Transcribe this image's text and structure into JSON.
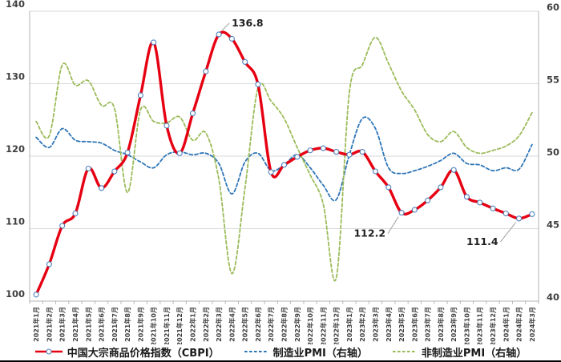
{
  "chart_data": {
    "type": "line",
    "title": "",
    "categories": [
      "2021年1月",
      "2021年2月",
      "2021年3月",
      "2021年4月",
      "2021年5月",
      "2021年6月",
      "2021年7月",
      "2021年8月",
      "2021年9月",
      "2021年10月",
      "2021年11月",
      "2021年12月",
      "2022年1月",
      "2022年2月",
      "2022年3月",
      "2022年4月",
      "2022年5月",
      "2022年6月",
      "2022年7月",
      "2022年8月",
      "2022年9月",
      "2022年10月",
      "2022年11月",
      "2022年12月",
      "2023年1月",
      "2023年2月",
      "2023年3月",
      "2023年4月",
      "2023年5月",
      "2023年6月",
      "2023年7月",
      "2023年8月",
      "2023年9月",
      "2023年10月",
      "2023年11月",
      "2023年12月",
      "2024年1月",
      "2024年2月",
      "2024年3月"
    ],
    "series": [
      {
        "name": "中国大宗商品价格指数（CBPI）",
        "axis": "left",
        "style": "solid",
        "marker": "circle",
        "color": "#e60012",
        "marker_stroke": "#4f81bd",
        "values": [
          100.9,
          105.1,
          110.4,
          112.1,
          118.3,
          115.6,
          117.9,
          120.5,
          128.4,
          135.7,
          124.2,
          120.4,
          125.9,
          131.7,
          136.8,
          136.2,
          133.0,
          129.9,
          117.8,
          118.8,
          119.9,
          120.8,
          121.1,
          120.6,
          120.2,
          120.6,
          117.9,
          115.7,
          112.2,
          112.6,
          113.9,
          115.7,
          118.1,
          114.4,
          113.6,
          112.8,
          112.1,
          111.4,
          112.0
        ]
      },
      {
        "name": "制造业PMI（右轴）",
        "axis": "right",
        "style": "dashed",
        "marker": "none",
        "color": "#2e75b6",
        "values": [
          51.3,
          50.6,
          51.9,
          51.1,
          51.0,
          50.9,
          50.4,
          50.1,
          49.6,
          49.2,
          50.1,
          50.3,
          50.1,
          50.2,
          49.5,
          47.4,
          49.6,
          50.2,
          49.0,
          49.4,
          50.1,
          49.2,
          48.0,
          47.0,
          50.1,
          52.6,
          51.9,
          49.2,
          48.8,
          49.0,
          49.3,
          49.7,
          50.2,
          49.5,
          49.4,
          49.0,
          49.2,
          49.1,
          50.8
        ]
      },
      {
        "name": "非制造业PMI（右轴）",
        "axis": "right",
        "style": "dashed",
        "marker": "none",
        "color": "#9bbb59",
        "values": [
          52.4,
          51.4,
          56.3,
          54.9,
          55.2,
          53.5,
          53.3,
          47.5,
          53.2,
          52.4,
          52.3,
          52.7,
          51.1,
          51.6,
          48.4,
          41.9,
          47.8,
          54.7,
          53.8,
          52.6,
          50.6,
          48.7,
          46.7,
          41.6,
          54.4,
          56.3,
          58.2,
          56.4,
          54.5,
          53.2,
          51.5,
          51.0,
          51.7,
          50.6,
          50.2,
          50.4,
          50.7,
          51.4,
          53.0
        ]
      }
    ],
    "left_axis": {
      "min": 100,
      "max": 140,
      "ticks": [
        100,
        110,
        120,
        130,
        140
      ]
    },
    "right_axis": {
      "min": 40,
      "max": 60,
      "ticks": [
        40,
        45,
        50,
        55,
        60
      ]
    },
    "annotations": [
      {
        "label": "136.8",
        "series": 0,
        "index": 14
      },
      {
        "label": "112.2",
        "series": 0,
        "index": 28
      },
      {
        "label": "111.4",
        "series": 0,
        "index": 37
      }
    ],
    "grid": true,
    "legend_position": "bottom"
  },
  "colors": {
    "gridline": "#d9d9d9",
    "axis_line": "#b3b3b3",
    "tick_label": "#3f3f3f",
    "annotation_text": "#1f1f1f",
    "leader_line": "#a0a0a0"
  }
}
